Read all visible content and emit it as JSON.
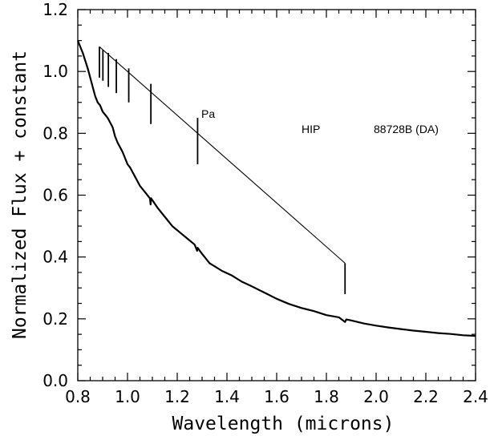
{
  "chart_data": {
    "type": "line",
    "title": "",
    "xlabel": "Wavelength (microns)",
    "ylabel": "Normalized Flux + constant",
    "xlim": [
      0.8,
      2.4
    ],
    "ylim": [
      0.0,
      1.2
    ],
    "xticks": [
      "0.8",
      "1.0",
      "1.2",
      "1.4",
      "1.6",
      "1.8",
      "2.0",
      "2.2",
      "2.4"
    ],
    "yticks": [
      "0.0",
      "0.2",
      "0.4",
      "0.6",
      "0.8",
      "1.0",
      "1.2"
    ],
    "grid": false,
    "legend": "none",
    "line_color": "#000000",
    "annotations": {
      "series_label": "Pa",
      "object_prefix": "HIP",
      "object_name": "88728B (DA)"
    },
    "series": [
      {
        "x": [
          0.8,
          0.82,
          0.84,
          0.85,
          0.86,
          0.87,
          0.88,
          0.89,
          0.9,
          0.92,
          0.94,
          0.95,
          0.96,
          0.98,
          1.0,
          1.01,
          1.03,
          1.05,
          1.07,
          1.09,
          1.093,
          1.095,
          1.12,
          1.15,
          1.18,
          1.21,
          1.24,
          1.27,
          1.28,
          1.282,
          1.3,
          1.33,
          1.35,
          1.38,
          1.42,
          1.46,
          1.5,
          1.55,
          1.6,
          1.65,
          1.7,
          1.75,
          1.8,
          1.85,
          1.875,
          1.88,
          1.9,
          1.95,
          2.0,
          2.05,
          2.1,
          2.15,
          2.2,
          2.25,
          2.3,
          2.35,
          2.4
        ],
        "y": [
          1.1,
          1.06,
          1.01,
          0.98,
          0.95,
          0.92,
          0.9,
          0.89,
          0.87,
          0.85,
          0.82,
          0.79,
          0.77,
          0.74,
          0.7,
          0.69,
          0.66,
          0.63,
          0.61,
          0.59,
          0.57,
          0.59,
          0.56,
          0.53,
          0.5,
          0.48,
          0.46,
          0.44,
          0.42,
          0.43,
          0.41,
          0.38,
          0.37,
          0.355,
          0.34,
          0.32,
          0.305,
          0.285,
          0.265,
          0.248,
          0.235,
          0.225,
          0.212,
          0.205,
          0.19,
          0.198,
          0.195,
          0.185,
          0.178,
          0.172,
          0.167,
          0.162,
          0.158,
          0.154,
          0.151,
          0.147,
          0.145
        ]
      }
    ],
    "line_markers": [
      {
        "x": 0.887,
        "top": 1.08,
        "bottom": 0.98
      },
      {
        "x": 0.901,
        "top": 1.07,
        "bottom": 0.97
      },
      {
        "x": 0.923,
        "top": 1.06,
        "bottom": 0.95
      },
      {
        "x": 0.955,
        "top": 1.04,
        "bottom": 0.93
      },
      {
        "x": 1.005,
        "top": 1.01,
        "bottom": 0.9
      },
      {
        "x": 1.094,
        "top": 0.96,
        "bottom": 0.83
      },
      {
        "x": 1.282,
        "top": 0.85,
        "bottom": 0.7
      },
      {
        "x": 1.875,
        "top": 0.38,
        "bottom": 0.28
      }
    ],
    "envelope": [
      [
        0.887,
        1.08
      ],
      [
        1.875,
        0.38
      ]
    ]
  }
}
